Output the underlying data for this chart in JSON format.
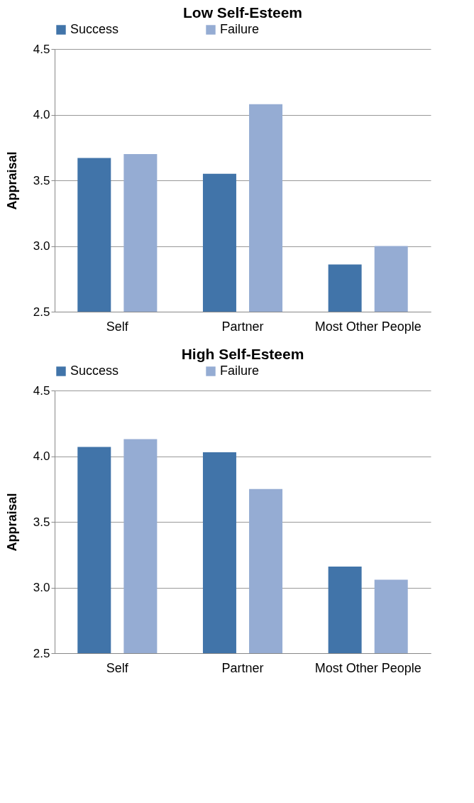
{
  "chart_data": [
    {
      "type": "bar",
      "title": "Low Self-Esteem",
      "ylabel": "Appraisal",
      "categories": [
        "Self",
        "Partner",
        "Most Other People"
      ],
      "series": [
        {
          "name": "Success",
          "color": "#4174a9",
          "values": [
            3.67,
            3.55,
            2.86
          ]
        },
        {
          "name": "Failure",
          "color": "#95acd3",
          "values": [
            3.7,
            4.08,
            3.0
          ]
        }
      ],
      "ylim": [
        2.5,
        4.5
      ],
      "yticks": [
        {
          "value": 2.5,
          "label": "2.5"
        },
        {
          "value": 3.0,
          "label": "3.0"
        },
        {
          "value": 3.5,
          "label": "3.5"
        },
        {
          "value": 4.0,
          "label": "4.0"
        },
        {
          "value": 4.5,
          "label": "4.5"
        }
      ],
      "grid": "y",
      "legend": "top"
    },
    {
      "type": "bar",
      "title": "High Self-Esteem",
      "ylabel": "Appraisal",
      "categories": [
        "Self",
        "Partner",
        "Most Other People"
      ],
      "series": [
        {
          "name": "Success",
          "color": "#4174a9",
          "values": [
            4.07,
            4.03,
            3.16
          ]
        },
        {
          "name": "Failure",
          "color": "#95acd3",
          "values": [
            4.13,
            3.75,
            3.06
          ]
        }
      ],
      "ylim": [
        2.5,
        4.5
      ],
      "yticks": [
        {
          "value": 2.5,
          "label": "2.5"
        },
        {
          "value": 3.0,
          "label": "3.0"
        },
        {
          "value": 3.5,
          "label": "3.5"
        },
        {
          "value": 4.0,
          "label": "4.0"
        },
        {
          "value": 4.5,
          "label": "4.5"
        }
      ],
      "grid": "y",
      "legend": "top"
    }
  ]
}
